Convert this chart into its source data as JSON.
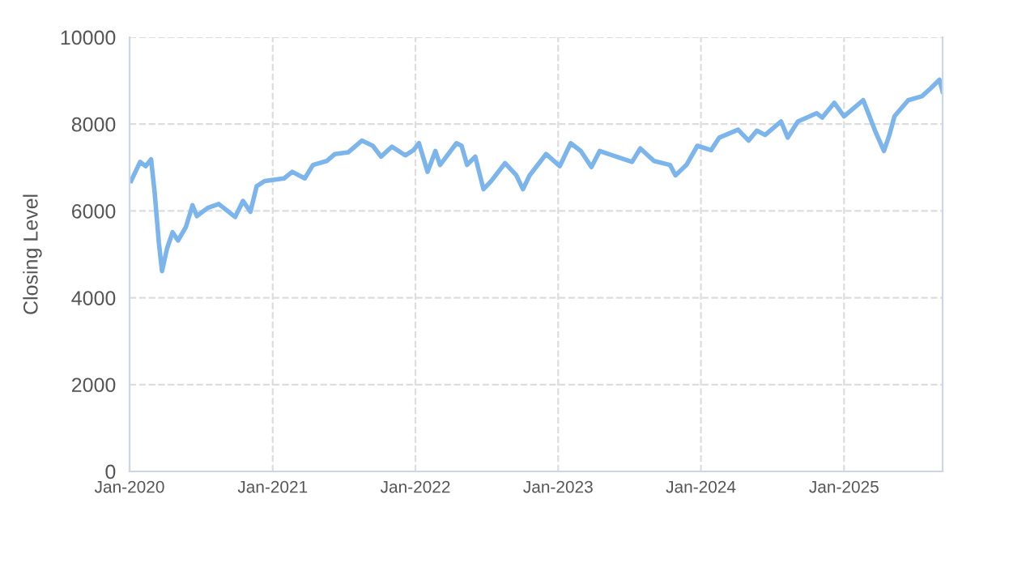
{
  "chart_data": {
    "type": "line",
    "ylabel": "Closing Level",
    "x": [
      "2020-01-05",
      "2020-01-28",
      "2020-02-11",
      "2020-02-25",
      "2020-03-05",
      "2020-03-16",
      "2020-03-24",
      "2020-04-06",
      "2020-04-20",
      "2020-05-04",
      "2020-05-24",
      "2020-06-10",
      "2020-06-21",
      "2020-07-19",
      "2020-08-16",
      "2020-09-27",
      "2020-10-17",
      "2020-11-05",
      "2020-11-21",
      "2020-12-12",
      "2021-01-30",
      "2021-02-20",
      "2021-03-24",
      "2021-04-14",
      "2021-05-19",
      "2021-06-09",
      "2021-07-13",
      "2021-08-17",
      "2021-09-14",
      "2021-10-05",
      "2021-11-02",
      "2021-12-06",
      "2021-12-27",
      "2022-01-10",
      "2022-02-01",
      "2022-02-21",
      "2022-03-05",
      "2022-04-16",
      "2022-04-29",
      "2022-05-13",
      "2022-06-03",
      "2022-06-24",
      "2022-07-14",
      "2022-08-18",
      "2022-09-16",
      "2022-10-03",
      "2022-10-20",
      "2022-12-01",
      "2023-01-05",
      "2023-02-02",
      "2023-02-28",
      "2023-03-27",
      "2023-04-17",
      "2023-06-05",
      "2023-07-09",
      "2023-07-30",
      "2023-09-03",
      "2023-10-14",
      "2023-10-28",
      "2023-11-25",
      "2023-12-23",
      "2024-01-27",
      "2024-02-17",
      "2024-04-05",
      "2024-05-02",
      "2024-05-23",
      "2024-06-13",
      "2024-07-24",
      "2024-08-10",
      "2024-09-05",
      "2024-10-23",
      "2024-11-06",
      "2024-12-07",
      "2025-01-01",
      "2025-02-19",
      "2025-03-02",
      "2025-03-23",
      "2025-04-13",
      "2025-04-27",
      "2025-05-10",
      "2025-06-14",
      "2025-07-19",
      "2025-08-09",
      "2025-09-02",
      "2025-09-10"
    ],
    "series": [
      {
        "color": "#7cb5ec",
        "values": [
          6690,
          7130,
          7030,
          7190,
          6440,
          5260,
          4615,
          5140,
          5510,
          5320,
          5630,
          6130,
          5880,
          6070,
          6160,
          5860,
          6230,
          5980,
          6570,
          6690,
          6750,
          6900,
          6750,
          7060,
          7150,
          7310,
          7350,
          7620,
          7500,
          7250,
          7480,
          7280,
          7400,
          7560,
          6900,
          7380,
          7060,
          7560,
          7500,
          7060,
          7250,
          6500,
          6690,
          7100,
          6820,
          6500,
          6820,
          7310,
          7030,
          7560,
          7380,
          7010,
          7380,
          7230,
          7130,
          7440,
          7150,
          7060,
          6820,
          7060,
          7500,
          7400,
          7690,
          7870,
          7620,
          7850,
          7750,
          8060,
          7690,
          8060,
          8250,
          8150,
          8490,
          8180,
          8550,
          8300,
          7810,
          7380,
          7750,
          8180,
          8550,
          8640,
          8810,
          9020,
          8750
        ]
      }
    ],
    "xlim": [
      "2020-01-01",
      "2025-09-10"
    ],
    "xticks": [
      {
        "value": "2020-01-01",
        "label": "Jan-2020"
      },
      {
        "value": "2021-01-01",
        "label": "Jan-2021"
      },
      {
        "value": "2022-01-01",
        "label": "Jan-2022"
      },
      {
        "value": "2023-01-01",
        "label": "Jan-2023"
      },
      {
        "value": "2024-01-01",
        "label": "Jan-2024"
      },
      {
        "value": "2025-01-01",
        "label": "Jan-2025"
      }
    ],
    "ylim": [
      0,
      10000
    ],
    "yticks": [
      0,
      2000,
      4000,
      6000,
      8000,
      10000
    ],
    "grid": true,
    "marker": "none",
    "line_style": "solid",
    "legend": false
  }
}
